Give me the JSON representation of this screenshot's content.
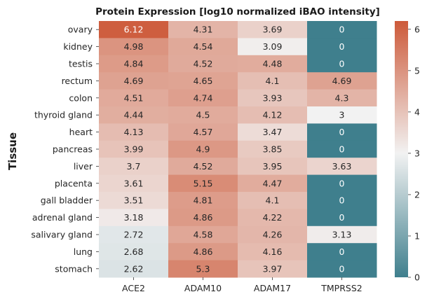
{
  "chart_data": {
    "type": "heatmap",
    "title": "Protein Expression [log10 normalized iBAO intensity]",
    "ylabel": "Tissue",
    "xlabel": "",
    "columns": [
      "ACE2",
      "ADAM10",
      "ADAM17",
      "TMPRSS2"
    ],
    "rows": [
      "ovary",
      "kidney",
      "testis",
      "rectum",
      "colon",
      "thyroid gland",
      "heart",
      "pancreas",
      "liver",
      "placenta",
      "gall bladder",
      "adrenal gland",
      "salivary gland",
      "lung",
      "stomach"
    ],
    "values": [
      [
        6.12,
        4.31,
        3.69,
        0
      ],
      [
        4.98,
        4.54,
        3.09,
        0
      ],
      [
        4.84,
        4.52,
        4.48,
        0
      ],
      [
        4.69,
        4.65,
        4.1,
        4.69
      ],
      [
        4.51,
        4.74,
        3.93,
        4.3
      ],
      [
        4.44,
        4.5,
        4.12,
        3
      ],
      [
        4.13,
        4.57,
        3.47,
        0
      ],
      [
        3.99,
        4.9,
        3.85,
        0
      ],
      [
        3.7,
        4.52,
        3.95,
        3.63
      ],
      [
        3.61,
        5.15,
        4.47,
        0
      ],
      [
        3.51,
        4.81,
        4.1,
        0
      ],
      [
        3.18,
        4.86,
        4.22,
        0
      ],
      [
        2.72,
        4.58,
        4.26,
        3.13
      ],
      [
        2.68,
        4.86,
        4.16,
        0
      ],
      [
        2.62,
        5.3,
        3.97,
        0
      ]
    ],
    "value_range": [
      0,
      6.2
    ],
    "colorbar": {
      "ticks": [
        "0",
        "1",
        "2",
        "3",
        "4",
        "5",
        "6"
      ],
      "tick_values": [
        0,
        1,
        2,
        3,
        4,
        5,
        6
      ],
      "low_color": "#3f7f8d",
      "mid_color": "#f2f2f2",
      "high_color": "#cd5a3a"
    },
    "grid": false,
    "legend": "colorbar-right"
  }
}
